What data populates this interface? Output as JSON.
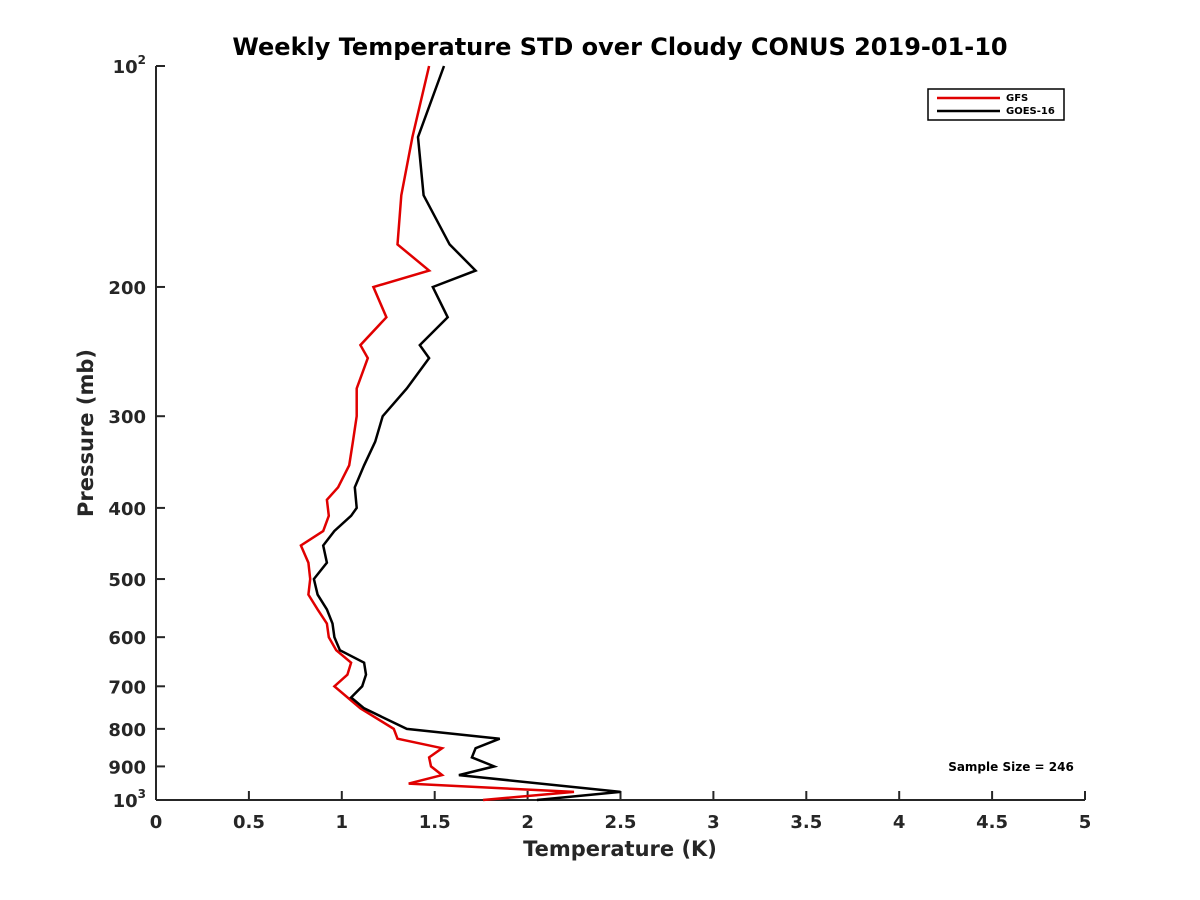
{
  "chart_data": {
    "type": "line",
    "title": "Weekly Temperature STD over Cloudy CONUS 2019-01-10",
    "xlabel": "Temperature (K)",
    "ylabel": "Pressure (mb)",
    "xlim": [
      0,
      5
    ],
    "ylim": [
      100,
      1000
    ],
    "y_scale": "log",
    "y_reversed": true,
    "grid": false,
    "legend_position": "top-right",
    "x_ticks": [
      0,
      0.5,
      1,
      1.5,
      2,
      2.5,
      3,
      3.5,
      4,
      4.5,
      5
    ],
    "x_tick_labels": [
      "0",
      "0.5",
      "1",
      "1.5",
      "2",
      "2.5",
      "3",
      "3.5",
      "4",
      "4.5",
      "5"
    ],
    "y_ticks": [
      100,
      200,
      300,
      400,
      500,
      600,
      700,
      800,
      900,
      1000
    ],
    "y_tick_labels": [
      {
        "base": "10",
        "exp": "2"
      },
      {
        "base": "200",
        "exp": ""
      },
      {
        "base": "300",
        "exp": ""
      },
      {
        "base": "400",
        "exp": ""
      },
      {
        "base": "500",
        "exp": ""
      },
      {
        "base": "600",
        "exp": ""
      },
      {
        "base": "700",
        "exp": ""
      },
      {
        "base": "800",
        "exp": ""
      },
      {
        "base": "900",
        "exp": ""
      },
      {
        "base": "10",
        "exp": "3"
      }
    ],
    "series": [
      {
        "name": "GFS",
        "color": "#e00000",
        "points": [
          [
            1.47,
            100
          ],
          [
            1.38,
            125
          ],
          [
            1.32,
            150
          ],
          [
            1.3,
            175
          ],
          [
            1.47,
            190
          ],
          [
            1.17,
            200
          ],
          [
            1.24,
            220
          ],
          [
            1.1,
            240
          ],
          [
            1.14,
            250
          ],
          [
            1.08,
            275
          ],
          [
            1.08,
            300
          ],
          [
            1.06,
            325
          ],
          [
            1.04,
            350
          ],
          [
            0.98,
            375
          ],
          [
            0.92,
            390
          ],
          [
            0.93,
            410
          ],
          [
            0.9,
            430
          ],
          [
            0.78,
            450
          ],
          [
            0.82,
            475
          ],
          [
            0.83,
            500
          ],
          [
            0.82,
            525
          ],
          [
            0.87,
            550
          ],
          [
            0.92,
            575
          ],
          [
            0.93,
            600
          ],
          [
            0.97,
            625
          ],
          [
            1.05,
            650
          ],
          [
            1.03,
            675
          ],
          [
            0.96,
            700
          ],
          [
            1.1,
            750
          ],
          [
            1.28,
            800
          ],
          [
            1.3,
            825
          ],
          [
            1.54,
            850
          ],
          [
            1.47,
            875
          ],
          [
            1.48,
            900
          ],
          [
            1.54,
            925
          ],
          [
            1.36,
            950
          ],
          [
            2.25,
            975
          ],
          [
            1.76,
            1000
          ]
        ]
      },
      {
        "name": "GOES-16",
        "color": "#000000",
        "points": [
          [
            1.55,
            100
          ],
          [
            1.41,
            125
          ],
          [
            1.44,
            150
          ],
          [
            1.58,
            175
          ],
          [
            1.72,
            190
          ],
          [
            1.49,
            200
          ],
          [
            1.57,
            220
          ],
          [
            1.42,
            240
          ],
          [
            1.47,
            250
          ],
          [
            1.35,
            275
          ],
          [
            1.22,
            300
          ],
          [
            1.18,
            325
          ],
          [
            1.12,
            350
          ],
          [
            1.07,
            375
          ],
          [
            1.08,
            400
          ],
          [
            1.05,
            410
          ],
          [
            0.96,
            430
          ],
          [
            0.9,
            450
          ],
          [
            0.92,
            475
          ],
          [
            0.85,
            500
          ],
          [
            0.87,
            525
          ],
          [
            0.92,
            550
          ],
          [
            0.95,
            575
          ],
          [
            0.96,
            600
          ],
          [
            0.99,
            625
          ],
          [
            1.12,
            650
          ],
          [
            1.13,
            675
          ],
          [
            1.11,
            700
          ],
          [
            1.05,
            725
          ],
          [
            1.12,
            750
          ],
          [
            1.35,
            800
          ],
          [
            1.85,
            825
          ],
          [
            1.72,
            850
          ],
          [
            1.7,
            875
          ],
          [
            1.82,
            900
          ],
          [
            1.63,
            925
          ],
          [
            2.5,
            975
          ],
          [
            2.05,
            1000
          ]
        ]
      }
    ],
    "annotations": [
      {
        "text": "Sample Size = 246",
        "position": "bottom-right"
      }
    ]
  }
}
